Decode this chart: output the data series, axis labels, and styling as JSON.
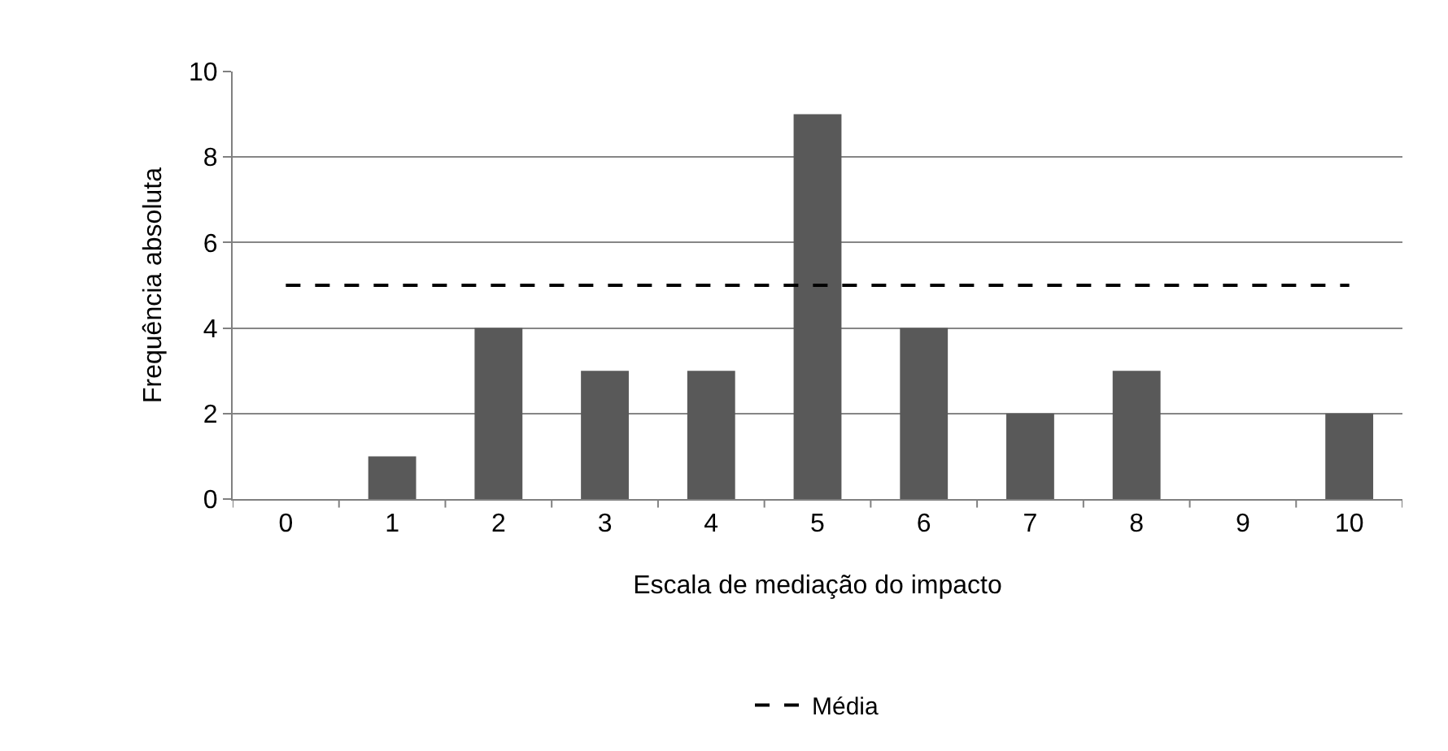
{
  "chart_data": {
    "type": "bar",
    "xlabel": "Escala de mediação do impacto",
    "ylabel": "Frequência absoluta",
    "categories": [
      "0",
      "1",
      "2",
      "3",
      "4",
      "5",
      "6",
      "7",
      "8",
      "9",
      "10"
    ],
    "values": [
      0,
      1,
      4,
      3,
      3,
      9,
      4,
      2,
      3,
      0,
      2
    ],
    "color": "#595959",
    "ylim": [
      0,
      10
    ],
    "yticks": [
      0,
      2,
      4,
      6,
      8,
      10
    ],
    "grid": "y",
    "legend": "bottom",
    "ref_lines": [
      {
        "axis": "y",
        "value": 5,
        "label": "Média",
        "color": "#000000",
        "line_style": "dashed"
      }
    ]
  }
}
